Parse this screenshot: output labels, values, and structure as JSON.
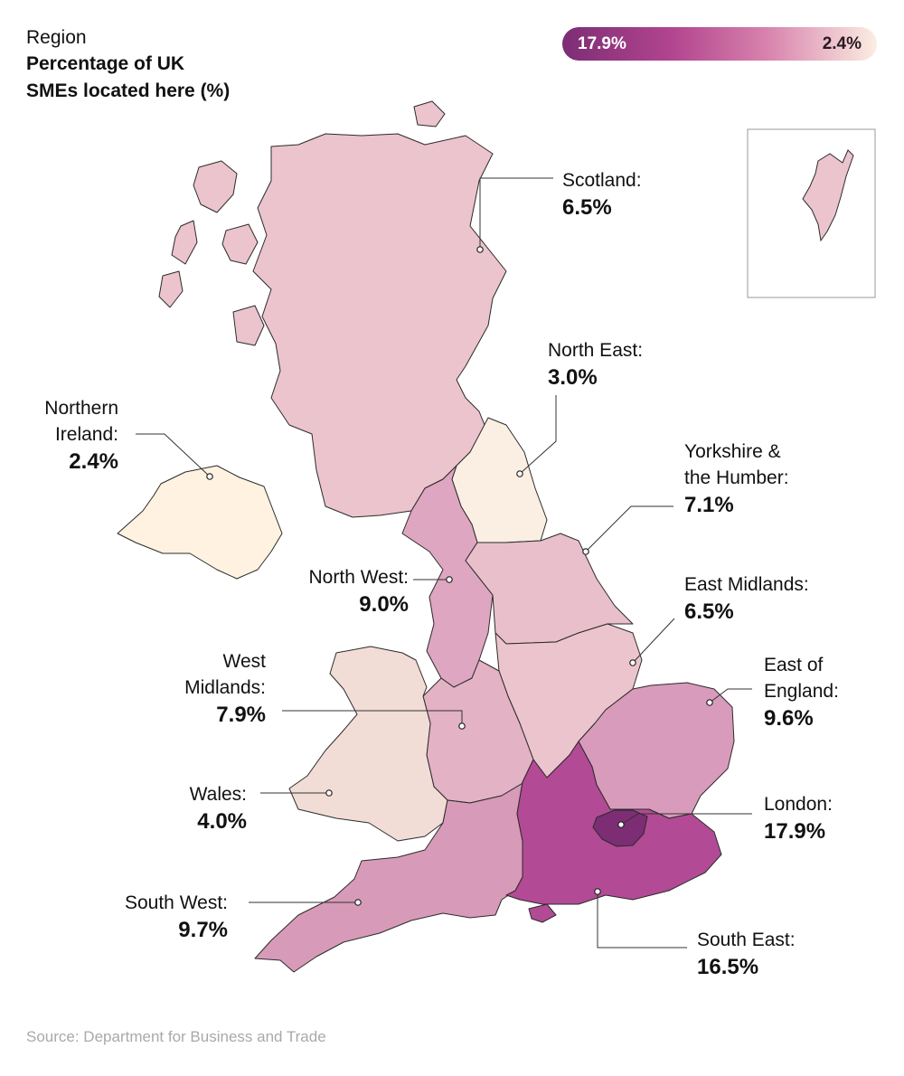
{
  "header": {
    "subtitle": "Region",
    "title_line1": "Percentage of UK",
    "title_line2": "SMEs located here (%)"
  },
  "legend": {
    "max_label": "17.9%",
    "min_label": "2.4%",
    "color_max": "#7c2d74",
    "color_min": "#fbeee2"
  },
  "source": "Source: Department for Business and Trade",
  "regions": [
    {
      "id": "scotland",
      "name_lines": [
        "Scotland:"
      ],
      "value": 6.5,
      "value_label": "6.5%",
      "color": "#ecc4cd"
    },
    {
      "id": "north-east",
      "name_lines": [
        "North East:"
      ],
      "value": 3.0,
      "value_label": "3.0%",
      "color": "#fbefe3"
    },
    {
      "id": "yorkshire",
      "name_lines": [
        "Yorkshire &",
        "the Humber:"
      ],
      "value": 7.1,
      "value_label": "7.1%",
      "color": "#e8bfcb"
    },
    {
      "id": "east-midlands",
      "name_lines": [
        "East Midlands:"
      ],
      "value": 6.5,
      "value_label": "6.5%",
      "color": "#ecc4cd"
    },
    {
      "id": "east-of-england",
      "name_lines": [
        "East of",
        "England:"
      ],
      "value": 9.6,
      "value_label": "9.6%",
      "color": "#d99bbb"
    },
    {
      "id": "london",
      "name_lines": [
        "London:"
      ],
      "value": 17.9,
      "value_label": "17.9%",
      "color": "#7c2d74"
    },
    {
      "id": "south-east",
      "name_lines": [
        "South East:"
      ],
      "value": 16.5,
      "value_label": "16.5%",
      "color": "#b24a95"
    },
    {
      "id": "south-west",
      "name_lines": [
        "South West:"
      ],
      "value": 9.7,
      "value_label": "9.7%",
      "color": "#d89ab9"
    },
    {
      "id": "wales",
      "name_lines": [
        "Wales:"
      ],
      "value": 4.0,
      "value_label": "4.0%",
      "color": "#f2ddd6"
    },
    {
      "id": "west-midlands",
      "name_lines": [
        "West",
        "Midlands:"
      ],
      "value": 7.9,
      "value_label": "7.9%",
      "color": "#e3b2c4"
    },
    {
      "id": "north-west",
      "name_lines": [
        "North West:"
      ],
      "value": 9.0,
      "value_label": "9.0%",
      "color": "#dea6c0"
    },
    {
      "id": "northern-ireland",
      "name_lines": [
        "Northern",
        "Ireland:"
      ],
      "value": 2.4,
      "value_label": "2.4%",
      "color": "#fff2e0"
    }
  ]
}
